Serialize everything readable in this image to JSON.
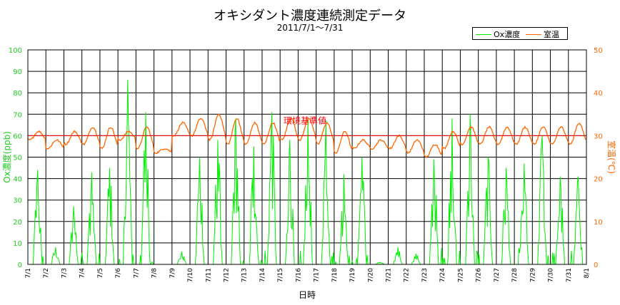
{
  "chart_data": {
    "type": "line",
    "title": "オキシダント濃度連続測定データ",
    "subtitle": "2011/7/1〜7/31",
    "xlabel": "日時",
    "ylabel_left": "Ox濃度(ppb)",
    "ylabel_right": "室温(℃)",
    "ylim_left": [
      0,
      100
    ],
    "ylim_right": [
      0,
      50
    ],
    "yticks_left": [
      "0",
      "10",
      "20",
      "30",
      "40",
      "50",
      "60",
      "70",
      "80",
      "90",
      "100"
    ],
    "yticks_right": [
      "0",
      "10",
      "20",
      "30",
      "40",
      "50"
    ],
    "categories": [
      "7/1",
      "7/2",
      "7/3",
      "7/4",
      "7/5",
      "7/6",
      "7/7",
      "7/8",
      "7/9",
      "7/10",
      "7/11",
      "7/12",
      "7/13",
      "7/14",
      "7/15",
      "7/16",
      "7/17",
      "7/18",
      "7/19",
      "7/20",
      "7/21",
      "7/22",
      "7/23",
      "7/24",
      "7/25",
      "7/26",
      "7/27",
      "7/28",
      "7/29",
      "7/30",
      "7/31",
      "8/1"
    ],
    "grid": true,
    "legend_position": "top-right",
    "reference_line": {
      "label": "環境基準値",
      "value": 60,
      "axis": "left",
      "color": "#ff0000"
    },
    "series": [
      {
        "name": "Ox濃度",
        "axis": "left",
        "color": "#00ee00",
        "daily_peak_ppb": [
          44,
          8,
          27,
          43,
          45,
          86,
          71,
          0,
          6,
          50,
          58,
          68,
          55,
          71,
          58,
          68,
          67,
          42,
          50,
          1,
          8,
          5,
          49,
          68,
          70,
          50,
          45,
          47,
          60,
          41,
          41
        ]
      },
      {
        "name": "室温",
        "axis": "right",
        "color": "#ff6600",
        "daily_min_c": [
          29,
          27,
          28,
          28,
          27,
          29,
          27,
          26,
          30,
          30,
          29,
          28,
          28,
          28,
          29,
          29,
          28,
          26,
          27,
          27,
          27,
          26,
          25,
          27,
          28,
          28,
          28,
          28,
          28,
          28,
          28
        ],
        "daily_max_c": [
          31,
          29,
          31,
          32,
          32,
          31,
          32,
          27,
          33,
          34,
          35,
          34,
          33,
          33,
          34,
          34,
          33,
          31,
          29,
          29,
          30,
          29,
          28,
          31,
          32,
          32,
          32,
          32,
          32,
          32,
          33
        ]
      }
    ]
  }
}
